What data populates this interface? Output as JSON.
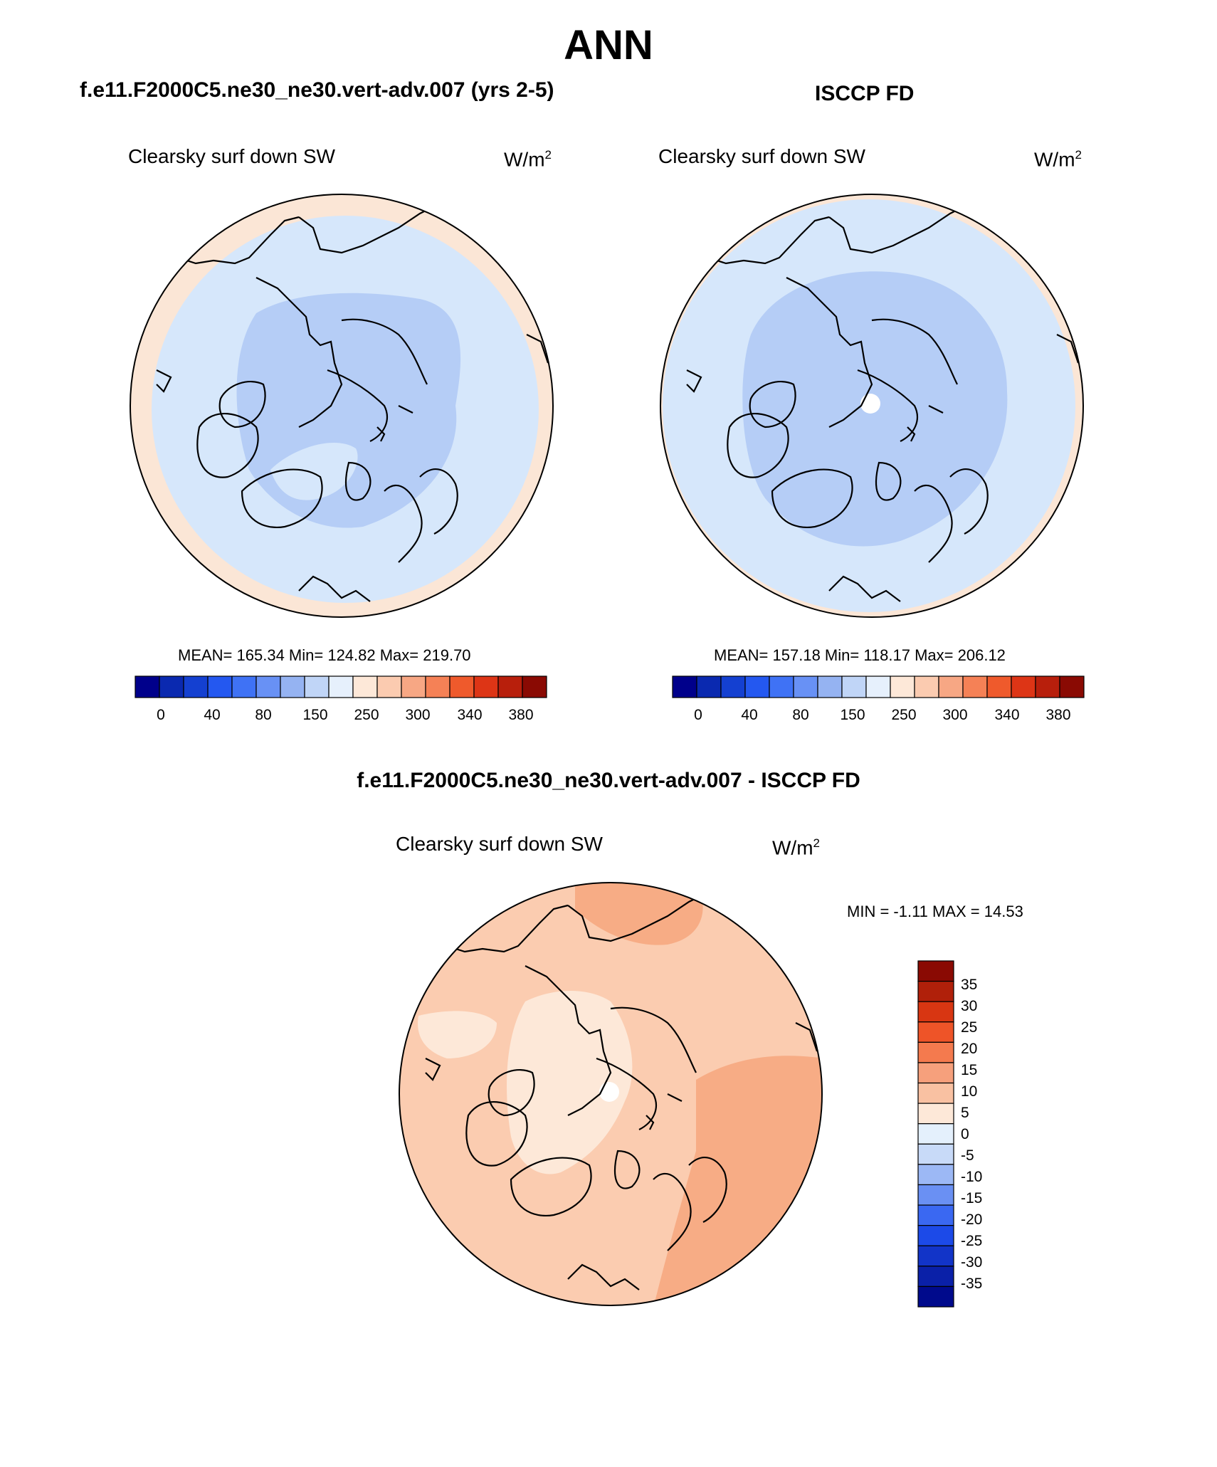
{
  "title": "ANN",
  "panels": [
    {
      "header": "f.e11.F2000C5.ne30_ne30.vert-adv.007 (yrs 2-5)",
      "variable": "Clearsky surf down SW",
      "units_base": "W/m",
      "units_exp": "2",
      "stats": "MEAN= 165.34  Min= 124.82  Max= 219.70"
    },
    {
      "header": "ISCCP FD",
      "variable": "Clearsky surf down SW",
      "units_base": "W/m",
      "units_exp": "2",
      "stats": "MEAN= 157.18  Min= 118.17  Max= 206.12"
    },
    {
      "header": "f.e11.F2000C5.ne30_ne30.vert-adv.007 - ISCCP FD",
      "variable": "Clearsky surf down SW",
      "units_base": "W/m",
      "units_exp": "2",
      "stats": "MIN =  -1.11 MAX =  14.53"
    }
  ],
  "colorbar_top": {
    "colors": [
      "#00008b",
      "#0a29b0",
      "#1440d1",
      "#2458f0",
      "#3f72f5",
      "#6891f5",
      "#95b3f2",
      "#c0d5f7",
      "#e6f0fc",
      "#fde8d8",
      "#fbcbb0",
      "#f7a784",
      "#f58156",
      "#ef5a2c",
      "#dd3516",
      "#b81f0c",
      "#8a0a03"
    ],
    "ticks": [
      "0",
      "40",
      "80",
      "150",
      "250",
      "300",
      "340",
      "380"
    ]
  },
  "colorbar_diff": {
    "colors": [
      "#000a8c",
      "#0a20a8",
      "#1234c8",
      "#1c4ae8",
      "#3a68f2",
      "#6a90f3",
      "#9cb8f5",
      "#c8daf8",
      "#e4f0fc",
      "#fde8d8",
      "#f9c1a2",
      "#f6a07c",
      "#f47a4e",
      "#ee5428",
      "#d83612",
      "#b0200a",
      "#8a0a03"
    ],
    "ticks": [
      "35",
      "30",
      "25",
      "20",
      "15",
      "10",
      "5",
      "0",
      "-5",
      "-10",
      "-15",
      "-20",
      "-25",
      "-30",
      "-35"
    ]
  },
  "map_colors": {
    "ocean_low": "#d6e7fb",
    "cap": "#b5cdf6",
    "edge": "#fbe6d6",
    "diff_base": "#fbccb0",
    "diff_high": "#f7ac85",
    "diff_low": "#fde8d8",
    "coast": "#000000"
  }
}
